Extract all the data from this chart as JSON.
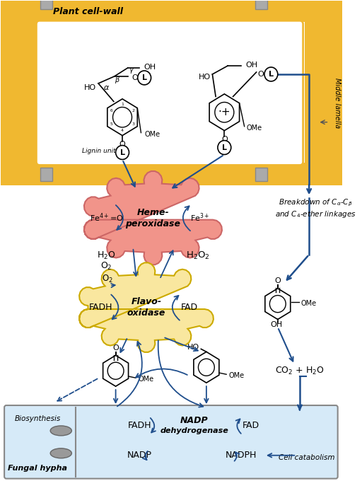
{
  "bg_color": "#ffffff",
  "cell_wall_color": "#F0B830",
  "fungal_bg": "#D6EAF8",
  "heme_color": "#F1948A",
  "flavo_color": "#F9E79F",
  "arrow_color": "#1F4E8C",
  "plant_cell_wall_label": "Plant cell-wall",
  "middle_lamella_label": "Middle lamella",
  "heme_label": "Heme-\nperoxidase",
  "fe4_label": "Fe$^{4+}$=O",
  "fe3_label": "Fe$^{3+}$",
  "h2o_label": "H$_2$O",
  "o2_label": "O$_2$",
  "h2o2_label": "H$_2$O$_2$",
  "flavo_label": "Flavo-\noxidase",
  "fadh_label": "FADH",
  "fad_label": "FAD",
  "co2_label": "CO$_2$ + H$_2$O",
  "breakdown_label": "Breakdown of C$_{\\alpha}$-C$_{\\beta}$\nand C$_4$-ether linkages",
  "cell_catabolism_label": "Cell catabolism",
  "biosynthesis_label": "Biosynthesis",
  "fungal_hypha_label": "Fungal hypha"
}
